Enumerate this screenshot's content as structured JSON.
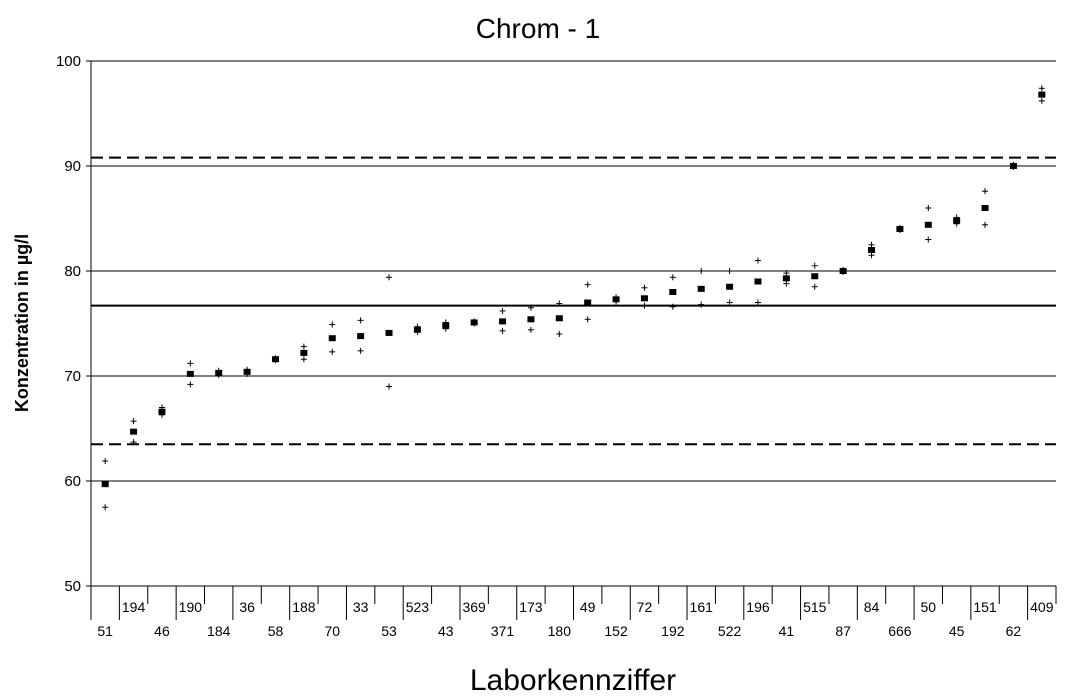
{
  "chart_data": {
    "type": "scatter",
    "title": "Chrom - 1",
    "xlabel": "Laborkennziffer",
    "ylabel": "Konzentration in µg/l",
    "ylim": [
      50,
      100
    ],
    "yticks": [
      "50",
      "60",
      "70",
      "80",
      "90",
      "100"
    ],
    "grid": true,
    "categories": [
      "51",
      "194",
      "46",
      "190",
      "184",
      "36",
      "58",
      "188",
      "70",
      "33",
      "53",
      "523",
      "43",
      "369",
      "371",
      "173",
      "180",
      "49",
      "152",
      "72",
      "192",
      "161",
      "522",
      "196",
      "41",
      "515",
      "87",
      "84",
      "666",
      "50",
      "45",
      "151",
      "62",
      "409"
    ],
    "mean": [
      59.7,
      64.7,
      66.6,
      70.2,
      70.3,
      70.4,
      71.6,
      72.2,
      73.6,
      73.8,
      74.1,
      74.4,
      74.8,
      75.1,
      75.2,
      75.4,
      75.5,
      77.0,
      77.3,
      77.4,
      78.0,
      78.3,
      78.5,
      79.0,
      79.3,
      79.5,
      80.0,
      82.0,
      84.0,
      84.4,
      84.8,
      86.0,
      90.0,
      96.8
    ],
    "upper": [
      61.9,
      65.7,
      67.0,
      71.2,
      70.5,
      70.6,
      71.7,
      72.8,
      74.9,
      75.3,
      79.4,
      74.7,
      75.1,
      75.2,
      76.2,
      76.5,
      76.9,
      78.7,
      77.5,
      78.4,
      79.4,
      80.0,
      80.0,
      81.0,
      79.8,
      80.5,
      80.1,
      82.5,
      84.1,
      86.0,
      85.1,
      87.6,
      90.1,
      97.4
    ],
    "lower": [
      57.5,
      63.7,
      66.3,
      69.2,
      70.1,
      70.2,
      71.5,
      71.6,
      72.3,
      72.4,
      69.0,
      74.2,
      74.5,
      75.0,
      74.3,
      74.4,
      74.0,
      75.4,
      77.1,
      76.7,
      76.6,
      76.8,
      77.0,
      77.0,
      78.8,
      78.5,
      79.9,
      81.5,
      83.9,
      83.0,
      84.5,
      84.4,
      89.9,
      96.2
    ],
    "reference_lines": [
      {
        "style": "solid",
        "value": 76.7
      },
      {
        "style": "dashed",
        "value": 90.8
      },
      {
        "style": "dashed",
        "value": 63.5
      }
    ]
  }
}
